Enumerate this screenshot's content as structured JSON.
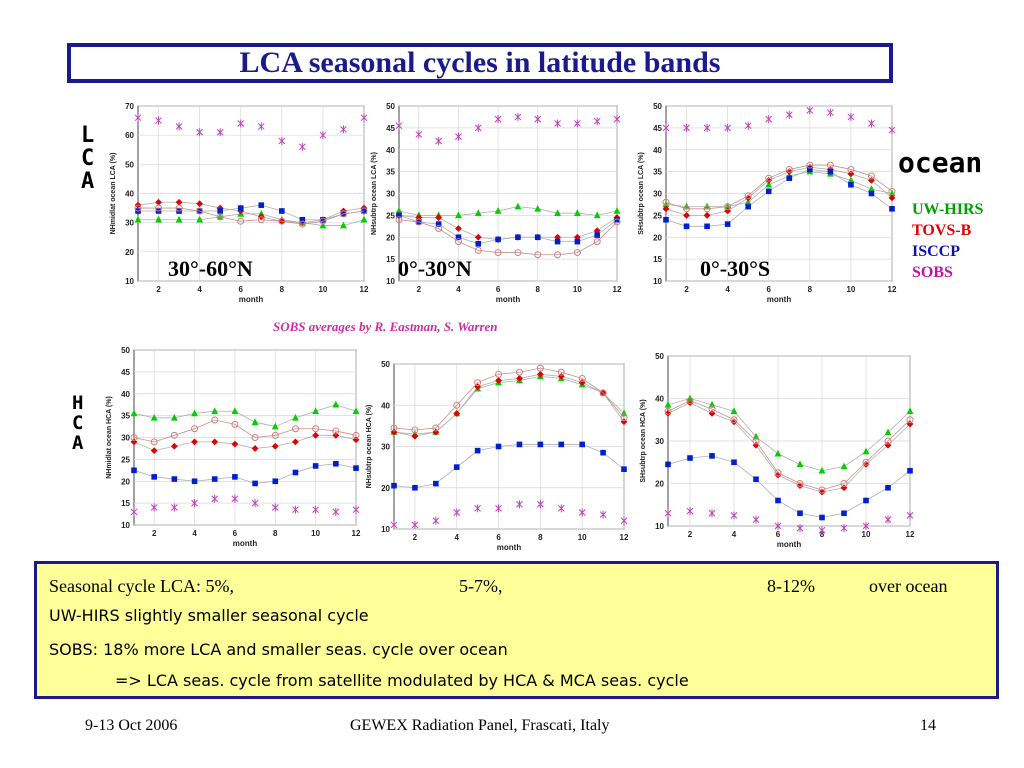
{
  "title": "LCA seasonal cycles in latitude bands",
  "lca_letters": [
    "L",
    "C",
    "A"
  ],
  "hca_letters": [
    "H",
    "C",
    "A"
  ],
  "ocean_label": "ocean",
  "legend": [
    {
      "label": "UW-HIRS",
      "color": "#00a000"
    },
    {
      "label": "TOVS-B",
      "color": "#e00000"
    },
    {
      "label": "ISCCP",
      "color": "#1010b0"
    },
    {
      "label": "SOBS",
      "color": "#c010b0"
    }
  ],
  "sobs_note": "SOBS averages by R. Eastman, S. Warren",
  "band_labels": [
    "30°-60°N",
    "0°-30°N",
    "0°-30°S"
  ],
  "series_styles": {
    "uwhirs": {
      "color": "#00d000",
      "marker": "triangle"
    },
    "tovsb": {
      "color": "#e00000",
      "marker": "diamond"
    },
    "isccp": {
      "color": "#0020d0",
      "marker": "square"
    },
    "sobs": {
      "color": "#c040c0",
      "marker": "star"
    },
    "extra": {
      "color": "#d08080",
      "marker": "circle"
    }
  },
  "chart_data": [
    {
      "type": "line",
      "ylabel": "NHmidlat ocean LCA (%)",
      "xlabel": "month",
      "xlim": [
        1,
        12
      ],
      "ylim": [
        10,
        70
      ],
      "xticks": [
        2,
        4,
        6,
        8,
        10,
        12
      ],
      "yticks": [
        10,
        20,
        30,
        40,
        50,
        60,
        70
      ],
      "x": [
        1,
        2,
        3,
        4,
        5,
        6,
        7,
        8,
        9,
        10,
        11,
        12
      ],
      "series": [
        {
          "key": "uwhirs",
          "values": [
            31,
            31,
            31,
            31,
            32,
            33,
            33,
            31,
            30,
            29,
            29,
            31
          ]
        },
        {
          "key": "tovsb",
          "values": [
            36,
            37,
            37,
            36.5,
            35,
            34,
            32,
            30.5,
            30,
            31,
            34,
            35
          ]
        },
        {
          "key": "isccp",
          "values": [
            34,
            34,
            34,
            34,
            34,
            35,
            36,
            34,
            31,
            31,
            33,
            34
          ]
        },
        {
          "key": "sobs",
          "values": [
            66,
            65,
            63,
            61,
            61,
            64,
            63,
            58,
            56,
            60,
            62,
            66
          ]
        },
        {
          "key": "extra",
          "values": [
            35,
            35,
            35,
            34,
            32,
            30.5,
            31,
            30.5,
            29.5,
            30.5,
            33,
            34
          ]
        }
      ]
    },
    {
      "type": "line",
      "ylabel": "NHsubtrp ocean LCA (%)",
      "xlabel": "month",
      "xlim": [
        1,
        12
      ],
      "ylim": [
        10,
        50
      ],
      "xticks": [
        2,
        4,
        6,
        8,
        10,
        12
      ],
      "yticks": [
        10,
        15,
        20,
        25,
        30,
        35,
        40,
        45,
        50
      ],
      "x": [
        1,
        2,
        3,
        4,
        5,
        6,
        7,
        8,
        9,
        10,
        11,
        12
      ],
      "series": [
        {
          "key": "uwhirs",
          "values": [
            26,
            25,
            25,
            25,
            25.5,
            26,
            27,
            26.5,
            25.5,
            25.5,
            25,
            26
          ]
        },
        {
          "key": "tovsb",
          "values": [
            25,
            24.5,
            24.5,
            22,
            20,
            19.5,
            20,
            20,
            20,
            20,
            21.5,
            24.5
          ]
        },
        {
          "key": "isccp",
          "values": [
            25,
            23.5,
            23,
            20,
            18.5,
            19.5,
            20,
            20,
            19,
            19,
            20.5,
            24
          ]
        },
        {
          "key": "sobs",
          "values": [
            45.5,
            43.5,
            42,
            43,
            45,
            47,
            47.5,
            47,
            46,
            46,
            46.5,
            47
          ]
        },
        {
          "key": "extra",
          "values": [
            24,
            23.5,
            22,
            19,
            17,
            16.5,
            16.5,
            16,
            16,
            16.5,
            19,
            23.5
          ]
        }
      ]
    },
    {
      "type": "line",
      "ylabel": "SHsubtrp ocean LCA (%)",
      "xlabel": "month",
      "xlim": [
        1,
        12
      ],
      "ylim": [
        10,
        50
      ],
      "xticks": [
        2,
        4,
        6,
        8,
        10,
        12
      ],
      "yticks": [
        10,
        15,
        20,
        25,
        30,
        35,
        40,
        45,
        50
      ],
      "x": [
        1,
        2,
        3,
        4,
        5,
        6,
        7,
        8,
        9,
        10,
        11,
        12
      ],
      "series": [
        {
          "key": "uwhirs",
          "values": [
            27.5,
            27,
            27,
            27,
            28,
            32,
            34,
            35,
            34.5,
            33,
            31,
            30
          ]
        },
        {
          "key": "tovsb",
          "values": [
            26.5,
            25,
            25,
            26,
            29,
            33,
            35,
            36,
            35.5,
            34.5,
            33,
            29
          ]
        },
        {
          "key": "isccp",
          "values": [
            24,
            22.5,
            22.5,
            23,
            27,
            30.5,
            33.5,
            35.5,
            35,
            32,
            30,
            26.5
          ]
        },
        {
          "key": "sobs",
          "values": [
            45,
            45,
            45,
            45,
            45.5,
            47,
            48,
            49,
            48.5,
            47.5,
            46,
            44.5
          ]
        },
        {
          "key": "extra",
          "values": [
            28,
            26.5,
            26.5,
            27,
            29.5,
            33.5,
            35.5,
            36.5,
            36.5,
            35.5,
            34,
            30.5
          ]
        }
      ]
    },
    {
      "type": "line",
      "ylabel": "NHmidlat ocean HCA (%)",
      "xlabel": "month",
      "xlim": [
        1,
        12
      ],
      "ylim": [
        10,
        50
      ],
      "xticks": [
        2,
        4,
        6,
        8,
        10,
        12
      ],
      "yticks": [
        10,
        15,
        20,
        25,
        30,
        35,
        40,
        45,
        50
      ],
      "x": [
        1,
        2,
        3,
        4,
        5,
        6,
        7,
        8,
        9,
        10,
        11,
        12
      ],
      "series": [
        {
          "key": "uwhirs",
          "values": [
            35.5,
            34.5,
            34.5,
            35.5,
            36,
            36,
            33.5,
            32.5,
            34.5,
            36,
            37.5,
            36
          ]
        },
        {
          "key": "tovsb",
          "values": [
            29,
            27,
            28,
            29,
            29,
            28.5,
            27.5,
            28,
            29,
            30.5,
            30.5,
            29.5
          ]
        },
        {
          "key": "isccp",
          "values": [
            22.5,
            21,
            20.5,
            20,
            20.5,
            21,
            19.5,
            20,
            22,
            23.5,
            24,
            23
          ]
        },
        {
          "key": "sobs",
          "values": [
            13,
            14,
            14,
            15,
            16,
            16,
            15,
            14,
            13.5,
            13.5,
            13,
            13.5
          ]
        },
        {
          "key": "extra",
          "values": [
            30,
            29,
            30.5,
            32,
            34,
            33,
            30,
            30.5,
            32,
            32,
            31.5,
            30.5
          ]
        }
      ]
    },
    {
      "type": "line",
      "ylabel": "NHsubtrp ocean HCA (%)",
      "xlabel": "month",
      "xlim": [
        1,
        12
      ],
      "ylim": [
        10,
        50
      ],
      "xticks": [
        2,
        4,
        6,
        8,
        10,
        12
      ],
      "yticks": [
        10,
        20,
        30,
        40,
        50
      ],
      "x": [
        1,
        2,
        3,
        4,
        5,
        6,
        7,
        8,
        9,
        10,
        11,
        12
      ],
      "series": [
        {
          "key": "uwhirs",
          "values": [
            33.5,
            33,
            33.5,
            38,
            44,
            45.5,
            46,
            47,
            46.5,
            45,
            43,
            38
          ]
        },
        {
          "key": "tovsb",
          "values": [
            33.5,
            32.5,
            33.5,
            38,
            44.5,
            46,
            46.5,
            47.5,
            47,
            45.5,
            43,
            36
          ]
        },
        {
          "key": "isccp",
          "values": [
            20.5,
            20,
            21,
            25,
            29,
            30,
            30.5,
            30.5,
            30.5,
            30.5,
            28.5,
            24.5
          ]
        },
        {
          "key": "sobs",
          "values": [
            11,
            11,
            12,
            14,
            15,
            15,
            16,
            16,
            15,
            14,
            13.5,
            12
          ]
        },
        {
          "key": "extra",
          "values": [
            34.5,
            34,
            34.5,
            40,
            45.5,
            47.5,
            48,
            49,
            48,
            46.5,
            43,
            37
          ]
        }
      ]
    },
    {
      "type": "line",
      "ylabel": "SHsubtrp ocean HCA (%)",
      "xlabel": "month",
      "xlim": [
        1,
        12
      ],
      "ylim": [
        10,
        50
      ],
      "xticks": [
        2,
        4,
        6,
        8,
        10,
        12
      ],
      "yticks": [
        10,
        20,
        30,
        40,
        50
      ],
      "x": [
        1,
        2,
        3,
        4,
        5,
        6,
        7,
        8,
        9,
        10,
        11,
        12
      ],
      "series": [
        {
          "key": "uwhirs",
          "values": [
            38.5,
            40,
            38.5,
            37,
            31,
            27,
            24.5,
            23,
            24,
            27.5,
            32,
            37
          ]
        },
        {
          "key": "tovsb",
          "values": [
            36.5,
            39,
            36.5,
            34.5,
            29,
            22,
            19.5,
            18,
            19,
            24.5,
            29,
            34
          ]
        },
        {
          "key": "isccp",
          "values": [
            24.5,
            26,
            26.5,
            25,
            21,
            16,
            13,
            12,
            13,
            16,
            19,
            23
          ]
        },
        {
          "key": "sobs",
          "values": [
            13,
            13.5,
            13,
            12.5,
            11.5,
            10,
            9.5,
            9,
            9.5,
            10,
            11.5,
            12.5
          ]
        },
        {
          "key": "extra",
          "values": [
            37,
            39.5,
            37.5,
            35,
            30,
            22.5,
            20,
            18.5,
            20,
            25,
            30,
            35
          ]
        }
      ]
    }
  ],
  "summary": {
    "line1_a": "Seasonal cycle LCA: 5%,",
    "line1_b": "5-7%,",
    "line1_c": "8-12%",
    "line1_d": "over ocean",
    "line2": "UW-HIRS slightly smaller seasonal cycle",
    "line3": "SOBS: 18% more LCA and smaller seas. cycle over ocean",
    "line4": "=> LCA seas. cycle from satellite modulated by HCA & MCA seas. cycle"
  },
  "footer": {
    "date": "9-13 Oct 2006",
    "event": "GEWEX Radiation Panel, Frascati, Italy",
    "page": "14"
  }
}
